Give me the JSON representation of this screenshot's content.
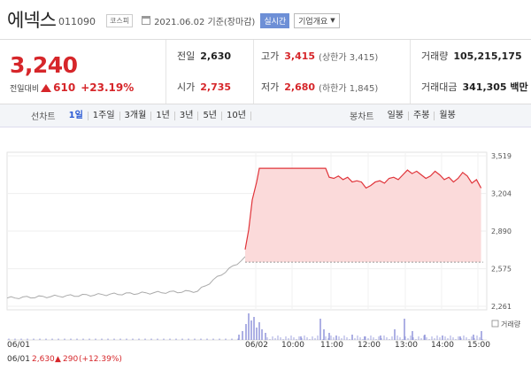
{
  "header": {
    "stock_name": "에넥스",
    "stock_code": "011090",
    "market": "코스피",
    "date": "2021.06.02 기준(장마감)",
    "realtime_label": "실시간",
    "company_info_label": "기업개요"
  },
  "summary": {
    "price": "3,240",
    "change_label": "전일대비",
    "change_value": "610",
    "change_pct": "+23.19%",
    "prev_close_label": "전일",
    "prev_close": "2,630",
    "open_label": "시가",
    "open": "2,735",
    "high_label": "고가",
    "high": "3,415",
    "upper_limit": "(상한가 3,415)",
    "low_label": "저가",
    "low": "2,680",
    "lower_limit": "(하한가 1,845)",
    "volume_label": "거래량",
    "volume": "105,215,175",
    "amount_label": "거래대금",
    "amount": "341,305 백만"
  },
  "tabs": {
    "line_label": "선차트",
    "line_tabs": [
      "1일",
      "1주일",
      "3개월",
      "1년",
      "3년",
      "5년",
      "10년"
    ],
    "candle_label": "봉차트",
    "candle_tabs": [
      "일봉",
      "주봉",
      "월봉"
    ]
  },
  "chart_data": {
    "type": "line",
    "y_ticks": [
      "3,519",
      "3,204",
      "2,890",
      "2,575",
      "2,261"
    ],
    "ylim": [
      2261,
      3519
    ],
    "reference_price": 2630,
    "volume_label": "거래량",
    "x_ticks": [
      "06/01",
      "06/02",
      "10:00",
      "11:00",
      "12:00",
      "13:00",
      "14:00",
      "15:00"
    ],
    "footer_day": "06/01",
    "footer_close": "2,630",
    "footer_change": "290",
    "footer_pct": "(+12.39%)",
    "colors": {
      "line": "#e0343a",
      "fill": "#fbdada",
      "prev_line": "#aaaaaa",
      "volume": "#8a8fd8"
    }
  }
}
